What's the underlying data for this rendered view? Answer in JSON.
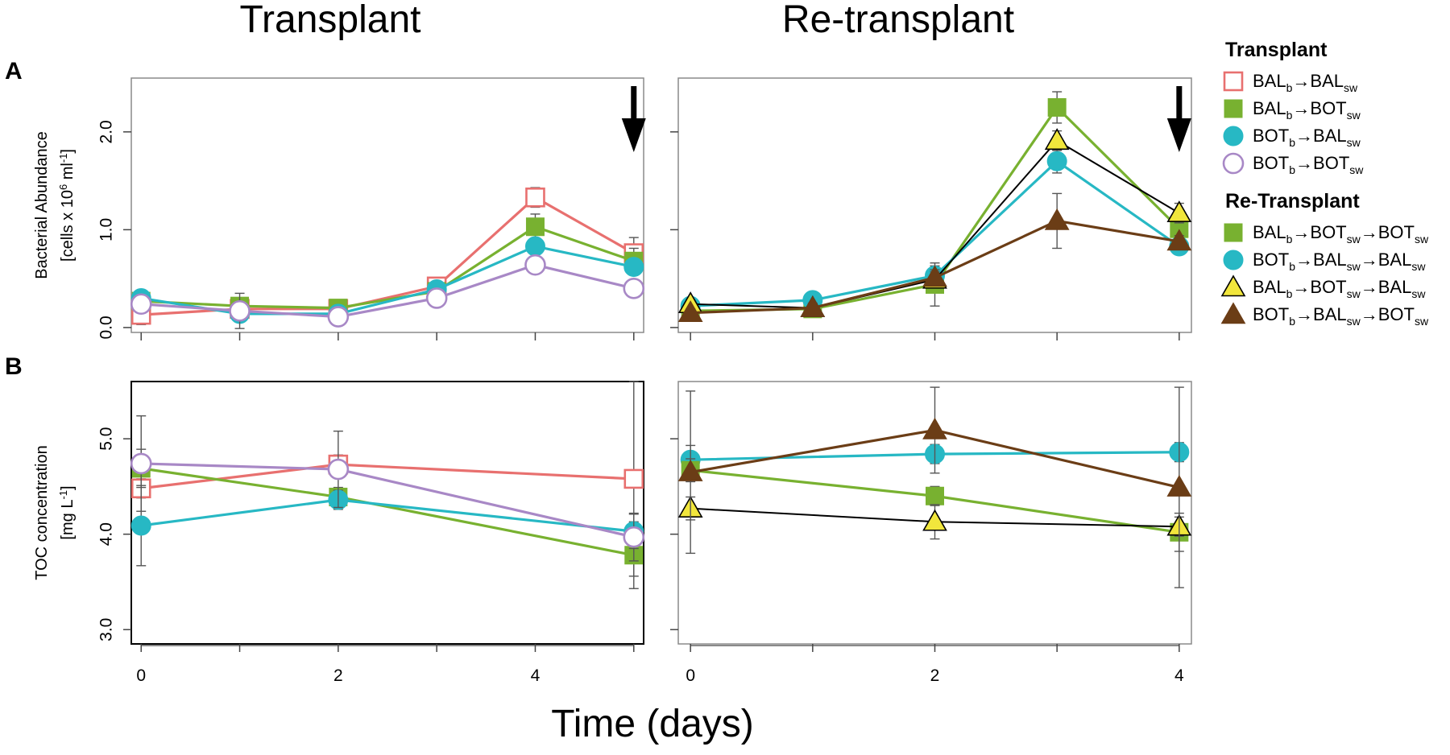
{
  "colors": {
    "salmon": "#e8706f",
    "green": "#78b130",
    "teal": "#27b8c4",
    "purple": "#a888c6",
    "yellow": "#f1e63c",
    "brown": "#6b3d16",
    "black": "#000000",
    "errorbar": "#555555"
  },
  "column_titles": [
    "Transplant",
    "Re-transplant"
  ],
  "panel_letters": [
    "A",
    "B"
  ],
  "x_axis_title": "Time (days)",
  "legend": {
    "groups": [
      {
        "title": "Transplant",
        "entries": [
          {
            "parts": [
              "BAL",
              "b",
              "→BAL",
              "sw"
            ],
            "marker": "square-open",
            "color": "salmon"
          },
          {
            "parts": [
              "BAL",
              "b",
              "→BOT",
              "sw"
            ],
            "marker": "square",
            "color": "green"
          },
          {
            "parts": [
              "BOT",
              "b",
              "→BAL",
              "sw"
            ],
            "marker": "circle",
            "color": "teal"
          },
          {
            "parts": [
              "BOT",
              "b",
              "→BOT",
              "sw"
            ],
            "marker": "circle-open",
            "color": "purple"
          }
        ]
      },
      {
        "title": "Re-Transplant",
        "entries": [
          {
            "parts": [
              "BAL",
              "b",
              "→BOT",
              "sw",
              "→BOT",
              "sw"
            ],
            "marker": "square",
            "color": "green"
          },
          {
            "parts": [
              "BOT",
              "b",
              "→BAL",
              "sw",
              "→BAL",
              "sw"
            ],
            "marker": "circle",
            "color": "teal"
          },
          {
            "parts": [
              "BAL",
              "b",
              "→BOT",
              "sw",
              "→BAL",
              "sw"
            ],
            "marker": "triangle",
            "color": "yellow"
          },
          {
            "parts": [
              "BOT",
              "b",
              "→BAL",
              "sw",
              "→BOT",
              "sw"
            ],
            "marker": "triangle",
            "color": "brown"
          }
        ]
      }
    ]
  },
  "chart_data": [
    {
      "id": "A-transplant",
      "type": "line",
      "ylabel": [
        "Bacterial Abundance",
        "[cells x 10",
        "6",
        " ml",
        "-1",
        "]"
      ],
      "xlim": [
        -0.1,
        5.1
      ],
      "ylim": [
        -0.05,
        2.55
      ],
      "xticks": [
        0,
        1,
        2,
        3,
        4,
        5
      ],
      "xticklabels": [],
      "yticks": [
        0.0,
        1.0,
        2.0
      ],
      "yticklabels": [
        "0.0",
        "1.0",
        "2.0"
      ],
      "arrow_at": 5,
      "series": [
        {
          "name": "BALb→BALsw",
          "color": "salmon",
          "marker": "square-open",
          "edge": "salmon",
          "x": [
            0,
            1,
            2,
            3,
            4,
            5
          ],
          "y": [
            0.13,
            0.19,
            0.19,
            0.42,
            1.33,
            0.76
          ],
          "err": [
            0.1,
            0.05,
            0.05,
            0.05,
            0.1,
            0.16
          ]
        },
        {
          "name": "BALb→BOTsw",
          "color": "green",
          "marker": "square",
          "edge": "green",
          "x": [
            0,
            1,
            2,
            3,
            4,
            5
          ],
          "y": [
            0.27,
            0.22,
            0.2,
            0.37,
            1.03,
            0.68
          ],
          "err": [
            0.08,
            0.05,
            0.05,
            0.06,
            0.13,
            0.13
          ]
        },
        {
          "name": "BOTb→BALsw",
          "color": "teal",
          "marker": "circle",
          "edge": "teal",
          "x": [
            0,
            1,
            2,
            3,
            4,
            5
          ],
          "y": [
            0.3,
            0.14,
            0.14,
            0.39,
            0.83,
            0.62
          ],
          "err": [
            0.06,
            0.04,
            0.04,
            0.05,
            0.07,
            0.08
          ]
        },
        {
          "name": "BOTb→BOTsw",
          "color": "purple",
          "marker": "circle-open",
          "edge": "purple",
          "x": [
            0,
            1,
            2,
            3,
            4,
            5
          ],
          "y": [
            0.24,
            0.17,
            0.11,
            0.3,
            0.64,
            0.4
          ],
          "err": [
            0.05,
            0.18,
            0.04,
            0.05,
            0.05,
            0.05
          ]
        }
      ]
    },
    {
      "id": "A-retransplant",
      "type": "line",
      "xlim": [
        -0.1,
        4.1
      ],
      "ylim": [
        -0.05,
        2.55
      ],
      "xticks": [
        0,
        1,
        2,
        3,
        4
      ],
      "xticklabels": [],
      "yticks": [
        0.0,
        1.0,
        2.0
      ],
      "yticklabels": [],
      "arrow_at": 4,
      "series": [
        {
          "name": "BALb→BOTsw→BOTsw",
          "color": "green",
          "marker": "square",
          "edge": "green",
          "x": [
            0,
            1,
            2,
            3,
            4
          ],
          "y": [
            0.17,
            0.19,
            0.44,
            2.25,
            1.01
          ],
          "err": [
            0.04,
            0.05,
            0.22,
            0.16,
            0.08
          ]
        },
        {
          "name": "BOTb→BALsw→BALsw",
          "color": "teal",
          "marker": "circle",
          "edge": "teal",
          "x": [
            0,
            1,
            2,
            3,
            4
          ],
          "y": [
            0.22,
            0.28,
            0.53,
            1.7,
            0.83
          ],
          "err": [
            0.04,
            0.04,
            0.1,
            0.12,
            0.07
          ]
        },
        {
          "name": "BALb→BOTsw→BALsw",
          "color": "yellow",
          "marker": "triangle",
          "edge": "black",
          "line": "black",
          "x": [
            0,
            1,
            2,
            3,
            4
          ],
          "y": [
            0.24,
            0.2,
            0.49,
            1.91,
            1.17
          ],
          "err": [
            0.04,
            0.04,
            0.08,
            0.1,
            0.1
          ]
        },
        {
          "name": "BOTb→BALsw→BOTsw",
          "color": "brown",
          "marker": "triangle",
          "edge": "brown",
          "x": [
            0,
            1,
            2,
            3,
            4
          ],
          "y": [
            0.15,
            0.2,
            0.51,
            1.09,
            0.88
          ],
          "err": [
            0.04,
            0.05,
            0.08,
            0.28,
            0.06
          ]
        }
      ]
    },
    {
      "id": "B-transplant",
      "type": "line",
      "ylabel": [
        "TOC concentration",
        "[mg L",
        "-1",
        "]"
      ],
      "xlim": [
        -0.1,
        5.1
      ],
      "ylim": [
        2.85,
        5.6
      ],
      "xticks": [
        0,
        1,
        2,
        3,
        4,
        5
      ],
      "xticklabels": [
        "0",
        "",
        "2",
        "",
        "4",
        ""
      ],
      "yticks": [
        3.0,
        4.0,
        5.0
      ],
      "yticklabels": [
        "3.0",
        "4.0",
        "5.0"
      ],
      "series": [
        {
          "name": "BALb→BALsw",
          "color": "salmon",
          "marker": "square-open",
          "edge": "salmon",
          "x": [
            0,
            2,
            5
          ],
          "y": [
            4.48,
            4.73,
            4.58
          ],
          "err": [
            0.1,
            0.1,
            1.02
          ]
        },
        {
          "name": "BALb→BOTsw",
          "color": "green",
          "marker": "square",
          "edge": "green",
          "x": [
            0,
            2,
            5
          ],
          "y": [
            4.69,
            4.39,
            3.78
          ],
          "err": [
            0.2,
            0.1,
            0.35
          ]
        },
        {
          "name": "BOTb→BALsw",
          "color": "teal",
          "marker": "circle",
          "edge": "teal",
          "x": [
            0,
            2,
            5
          ],
          "y": [
            4.09,
            4.36,
            4.03
          ],
          "err": [
            0.42,
            0.1,
            0.18
          ]
        },
        {
          "name": "BOTb→BOTsw",
          "color": "purple",
          "marker": "circle-open",
          "edge": "purple",
          "x": [
            0,
            2,
            5
          ],
          "y": [
            4.74,
            4.68,
            3.97
          ],
          "err": [
            0.5,
            0.4,
            0.25
          ]
        }
      ]
    },
    {
      "id": "B-retransplant",
      "type": "line",
      "xlim": [
        -0.1,
        4.1
      ],
      "ylim": [
        2.85,
        5.6
      ],
      "xticks": [
        0,
        1,
        2,
        3,
        4
      ],
      "xticklabels": [
        "0",
        "",
        "2",
        "",
        "4"
      ],
      "yticks": [
        3.0,
        4.0,
        5.0
      ],
      "yticklabels": [],
      "series": [
        {
          "name": "BOTb→BALsw→BALsw",
          "color": "teal",
          "marker": "circle",
          "edge": "teal",
          "x": [
            0,
            2,
            4
          ],
          "y": [
            4.78,
            4.84,
            4.86
          ],
          "err": [
            0.15,
            0.1,
            0.1
          ]
        },
        {
          "name": "BALb→BOTsw→BOTsw",
          "color": "green",
          "marker": "square",
          "edge": "green",
          "x": [
            0,
            2,
            4
          ],
          "y": [
            4.67,
            4.4,
            4.02
          ],
          "err": [
            0.12,
            0.1,
            0.2
          ]
        },
        {
          "name": "BALb→BOTsw→BALsw",
          "color": "yellow",
          "marker": "triangle",
          "edge": "black",
          "line": "black",
          "x": [
            0,
            2,
            4
          ],
          "y": [
            4.27,
            4.13,
            4.08
          ],
          "err": [
            0.12,
            0.18,
            0.1
          ]
        },
        {
          "name": "BOTb→BALsw→BOTsw",
          "color": "brown",
          "marker": "triangle",
          "edge": "brown",
          "x": [
            0,
            2,
            4
          ],
          "y": [
            4.65,
            5.09,
            4.49
          ],
          "err": [
            0.85,
            0.45,
            1.05
          ]
        }
      ]
    }
  ]
}
